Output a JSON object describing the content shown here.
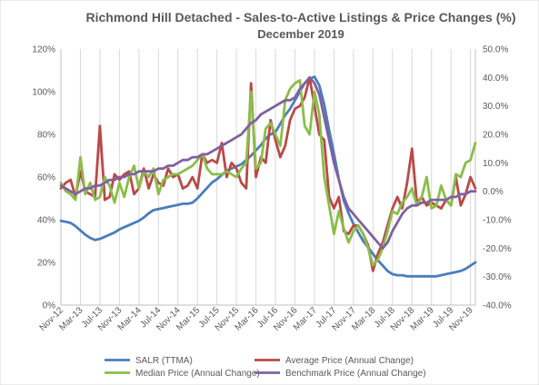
{
  "chart_data": {
    "type": "line",
    "title": "Richmond Hill Detached - Sales-to-Active Listings & Price Changes (%)",
    "subtitle": "December 2019",
    "x": [
      "Nov-12",
      "Dec-12",
      "Jan-13",
      "Feb-13",
      "Mar-13",
      "Apr-13",
      "May-13",
      "Jun-13",
      "Jul-13",
      "Aug-13",
      "Sep-13",
      "Oct-13",
      "Nov-13",
      "Dec-13",
      "Jan-14",
      "Feb-14",
      "Mar-14",
      "Apr-14",
      "May-14",
      "Jun-14",
      "Jul-14",
      "Aug-14",
      "Sep-14",
      "Oct-14",
      "Nov-14",
      "Dec-14",
      "Jan-15",
      "Feb-15",
      "Mar-15",
      "Apr-15",
      "May-15",
      "Jun-15",
      "Jul-15",
      "Aug-15",
      "Sep-15",
      "Oct-15",
      "Nov-15",
      "Dec-15",
      "Jan-16",
      "Feb-16",
      "Mar-16",
      "Apr-16",
      "May-16",
      "Jun-16",
      "Jul-16",
      "Aug-16",
      "Sep-16",
      "Oct-16",
      "Nov-16",
      "Dec-16",
      "Jan-17",
      "Feb-17",
      "Mar-17",
      "Apr-17",
      "May-17",
      "Jun-17",
      "Jul-17",
      "Aug-17",
      "Sep-17",
      "Oct-17",
      "Nov-17",
      "Dec-17",
      "Jan-18",
      "Feb-18",
      "Mar-18",
      "Apr-18",
      "May-18",
      "Jun-18",
      "Jul-18",
      "Aug-18",
      "Sep-18",
      "Oct-18",
      "Nov-18",
      "Dec-18",
      "Jan-19",
      "Feb-19",
      "Mar-19",
      "Apr-19",
      "May-19",
      "Jun-19",
      "Jul-19",
      "Aug-19",
      "Sep-19",
      "Oct-19",
      "Nov-19",
      "Dec-19"
    ],
    "x_tick_labels": [
      "Nov-12",
      "Mar-13",
      "Jul-13",
      "Nov-13",
      "Mar-14",
      "Jul-14",
      "Nov-14",
      "Mar-15",
      "Jul-15",
      "Nov-15",
      "Mar-16",
      "Jul-16",
      "Nov-16",
      "Mar-17",
      "Jul-17",
      "Nov-17",
      "Mar-18",
      "Jul-18",
      "Nov-18",
      "Mar-19",
      "Jul-19",
      "Nov-19"
    ],
    "y_left": {
      "ylim": [
        0,
        120
      ],
      "ticks": [
        "0%",
        "20%",
        "40%",
        "60%",
        "80%",
        "100%",
        "120%"
      ]
    },
    "y_right": {
      "ylim": [
        -40,
        50
      ],
      "ticks": [
        "-40.0%",
        "-30.0%",
        "-20.0%",
        "-10.0%",
        "0.0%",
        "10.0%",
        "20.0%",
        "30.0%",
        "40.0%",
        "50.0%"
      ]
    },
    "grid": "vertical",
    "legend_position": "bottom",
    "series": [
      {
        "name": "SALR (TTMA)",
        "axis": "left",
        "color": "#4a7ebb",
        "values": [
          39.5,
          39,
          38.5,
          37,
          35,
          33,
          31.5,
          30.5,
          31,
          32,
          33,
          34,
          35.5,
          36.5,
          37.5,
          38.5,
          39.5,
          41,
          43,
          44.5,
          45,
          45.5,
          46,
          46.5,
          47,
          47.5,
          47.5,
          48,
          50,
          52.5,
          55,
          57.5,
          59,
          61,
          63,
          64,
          65,
          66,
          68,
          70,
          72.5,
          75,
          78,
          80,
          81,
          85,
          89,
          92,
          96,
          100,
          104,
          106,
          107,
          103,
          94,
          82,
          71,
          59,
          49,
          43,
          38,
          34,
          30,
          27,
          24,
          21,
          18.5,
          16,
          14.5,
          14,
          14,
          13.5,
          13.5,
          13.5,
          13.5,
          13.5,
          13.5,
          13.5,
          14,
          14.5,
          15,
          15.5,
          16,
          17,
          18.5,
          20
        ]
      },
      {
        "name": "Average Price (Annual Change)",
        "axis": "right",
        "color": "#b94a48",
        "values": [
          1,
          3,
          4,
          -2,
          7,
          0,
          -1,
          -2,
          23,
          -3,
          -2,
          6,
          4,
          6,
          7,
          -1,
          1,
          8,
          1,
          6,
          3,
          2,
          8,
          5,
          6,
          1,
          2,
          5,
          1,
          13,
          10,
          11,
          10,
          17,
          5,
          10,
          8,
          3,
          1,
          38,
          5,
          12,
          10,
          25,
          18,
          12,
          16,
          25,
          29,
          30,
          33,
          40,
          30,
          20,
          18,
          -2,
          -6,
          -2,
          -14,
          -15,
          -12,
          -12,
          -15,
          -19,
          -28,
          -22,
          -18,
          -12,
          -6,
          -2,
          -6,
          3,
          15,
          -4,
          -2,
          -5,
          -4,
          -5,
          -6,
          -3,
          -5,
          5,
          -5,
          -1,
          5,
          1
        ]
      },
      {
        "name": "Median Price (Annual Change)",
        "axis": "right",
        "color": "#8bbd4a",
        "values": [
          3,
          0,
          -1,
          -3,
          12,
          -1,
          3,
          -3,
          -2,
          5,
          2,
          -4,
          3,
          -2,
          5,
          9,
          1,
          7,
          5,
          8,
          -1,
          4,
          5,
          6,
          6,
          7,
          8,
          9,
          11,
          13,
          8,
          6,
          6,
          6,
          7,
          6,
          5,
          8,
          10,
          35,
          8,
          10,
          22,
          24,
          20,
          16,
          32,
          36,
          38,
          39,
          23,
          20,
          35,
          27,
          5,
          -5,
          -15,
          -7,
          -13,
          -18,
          -14,
          -12,
          -15,
          -20,
          -26,
          -24,
          -20,
          -14,
          -7,
          -8,
          -4,
          -2,
          1,
          -5,
          -2,
          5,
          -6,
          -5,
          2,
          -3,
          -5,
          6,
          5,
          10,
          11,
          17
        ]
      },
      {
        "name": "Benchmark Price (Annual Change)",
        "axis": "right",
        "color": "#8061a0",
        "values": [
          2,
          1,
          0,
          -1,
          0,
          1,
          1,
          2,
          2,
          3,
          4,
          4,
          5,
          5,
          6,
          6,
          7,
          7,
          7,
          7,
          8,
          8,
          9,
          9,
          10,
          11,
          11,
          12,
          12,
          13,
          13,
          14,
          15,
          16,
          17,
          18,
          19,
          20,
          22,
          24,
          25,
          27,
          28,
          29,
          30,
          31,
          32,
          32,
          33,
          36,
          38,
          40,
          38,
          34,
          26,
          18,
          10,
          4,
          -2,
          -6,
          -8,
          -10,
          -12,
          -14,
          -16,
          -18,
          -20,
          -18,
          -14,
          -11,
          -8,
          -6,
          -5,
          -5,
          -4,
          -4,
          -3,
          -3,
          -3,
          -3,
          -2,
          -2,
          -1,
          -1,
          0,
          0
        ]
      }
    ]
  }
}
